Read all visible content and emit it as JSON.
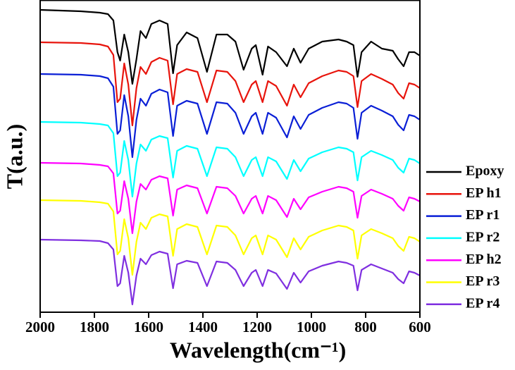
{
  "chart_data": {
    "type": "line",
    "xlabel": "Wavelength(cm⁻¹)",
    "ylabel": "T(a.u.)",
    "xlim": [
      2000,
      600
    ],
    "ylim": [
      0,
      440
    ],
    "xticks": [
      2000,
      1800,
      1600,
      1400,
      1200,
      1000,
      800,
      600
    ],
    "legend_position": "right",
    "x": [
      2000,
      1850,
      1780,
      1750,
      1730,
      1715,
      1705,
      1690,
      1675,
      1660,
      1645,
      1630,
      1610,
      1590,
      1560,
      1530,
      1510,
      1495,
      1460,
      1420,
      1385,
      1350,
      1310,
      1280,
      1250,
      1220,
      1205,
      1180,
      1160,
      1130,
      1090,
      1065,
      1040,
      1010,
      960,
      900,
      870,
      845,
      830,
      815,
      780,
      740,
      700,
      680,
      660,
      640,
      620,
      600
    ],
    "series": [
      {
        "name": "Epoxy",
        "color": "#000000",
        "values": [
          429,
          427,
          425,
          423,
          414,
          369,
          357,
          394,
          369,
          324,
          359,
          399,
          389,
          409,
          414,
          409,
          339,
          379,
          397,
          389,
          341,
          394,
          394,
          384,
          344,
          374,
          379,
          337,
          377,
          369,
          349,
          374,
          354,
          374,
          384,
          387,
          384,
          379,
          334,
          369,
          384,
          374,
          371,
          359,
          349,
          369,
          369,
          364
        ]
      },
      {
        "name": "EP h1",
        "color": "#e8140c",
        "values": [
          383,
          382,
          380,
          377,
          365,
          298,
          303,
          353,
          323,
          265,
          318,
          348,
          338,
          355,
          361,
          357,
          295,
          338,
          345,
          341,
          298,
          343,
          341,
          328,
          298,
          323,
          328,
          298,
          328,
          321,
          293,
          323,
          305,
          325,
          335,
          343,
          341,
          335,
          291,
          328,
          338,
          331,
          323,
          311,
          303,
          325,
          323,
          318
        ]
      },
      {
        "name": "EP r1",
        "color": "#0a1fd6",
        "values": [
          338,
          337,
          335,
          332,
          320,
          253,
          258,
          308,
          278,
          220,
          273,
          303,
          293,
          310,
          316,
          312,
          250,
          293,
          300,
          296,
          253,
          298,
          296,
          283,
          253,
          278,
          283,
          253,
          283,
          276,
          248,
          278,
          260,
          280,
          290,
          298,
          296,
          290,
          246,
          283,
          293,
          286,
          278,
          266,
          258,
          280,
          278,
          273
        ]
      },
      {
        "name": "EP r2",
        "color": "#00ffff",
        "values": [
          270,
          269,
          267,
          265,
          254,
          193,
          198,
          243,
          216,
          164,
          211,
          238,
          229,
          245,
          250,
          247,
          191,
          229,
          236,
          232,
          193,
          234,
          232,
          220,
          193,
          216,
          220,
          193,
          220,
          214,
          189,
          216,
          200,
          218,
          227,
          234,
          232,
          227,
          187,
          220,
          229,
          223,
          216,
          205,
          198,
          218,
          216,
          211
        ]
      },
      {
        "name": "EP h2",
        "color": "#ff00ff",
        "values": [
          212,
          211,
          209,
          207,
          197,
          140,
          144,
          186,
          161,
          112,
          157,
          182,
          174,
          188,
          193,
          190,
          137,
          174,
          180,
          176,
          140,
          178,
          176,
          165,
          140,
          161,
          165,
          140,
          165,
          159,
          135,
          161,
          146,
          163,
          171,
          178,
          176,
          171,
          134,
          165,
          174,
          168,
          161,
          151,
          144,
          163,
          161,
          157
        ]
      },
      {
        "name": "EP r3",
        "color": "#ffff00",
        "values": [
          159,
          158,
          156,
          154,
          143,
          82,
          87,
          132,
          105,
          53,
          100,
          127,
          118,
          134,
          139,
          136,
          80,
          118,
          125,
          121,
          82,
          123,
          121,
          109,
          82,
          105,
          109,
          82,
          109,
          103,
          78,
          105,
          89,
          107,
          116,
          123,
          121,
          116,
          76,
          109,
          118,
          112,
          105,
          94,
          87,
          107,
          105,
          100
        ]
      },
      {
        "name": "EP r4",
        "color": "#7f2fe0",
        "values": [
          103,
          102,
          101,
          98,
          89,
          37,
          41,
          80,
          56,
          11,
          52,
          76,
          68,
          81,
          86,
          83,
          34,
          68,
          73,
          70,
          37,
          72,
          70,
          60,
          37,
          56,
          60,
          37,
          60,
          55,
          33,
          56,
          42,
          58,
          66,
          72,
          70,
          66,
          31,
          60,
          68,
          62,
          56,
          47,
          41,
          58,
          56,
          52
        ]
      }
    ]
  }
}
